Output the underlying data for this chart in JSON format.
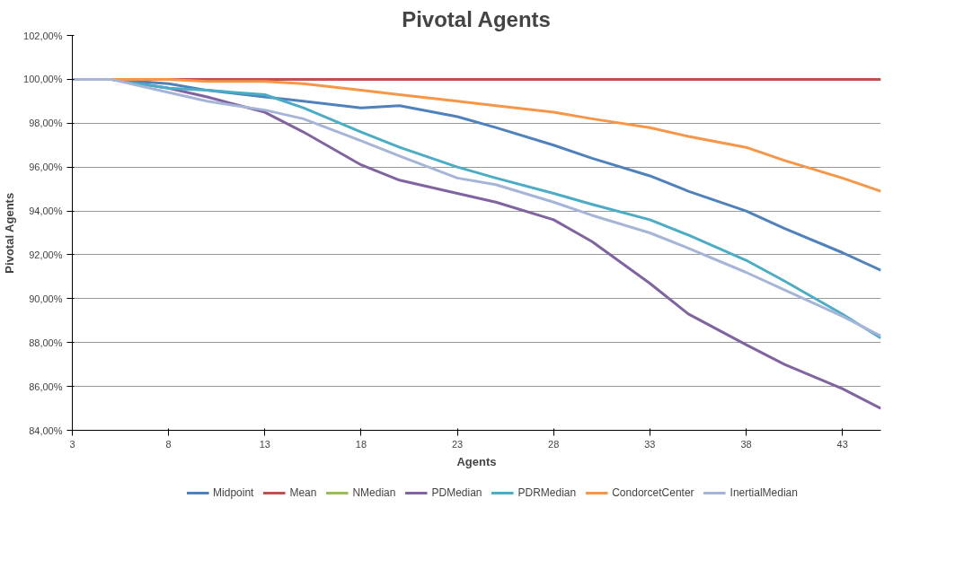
{
  "chart_data": {
    "type": "line",
    "title": "Pivotal Agents",
    "xlabel": "Agents",
    "ylabel": "Pivotal Agents",
    "x": [
      3,
      5,
      8,
      10,
      13,
      15,
      18,
      20,
      23,
      25,
      28,
      30,
      33,
      35,
      38,
      40,
      43,
      45
    ],
    "series": [
      {
        "name": "Midpoint",
        "color": "#4f81bd",
        "values": [
          100,
          100,
          99.8,
          99.5,
          99.2,
          99.0,
          98.7,
          98.8,
          98.3,
          97.8,
          97.0,
          96.4,
          95.6,
          94.9,
          94.0,
          93.2,
          92.1,
          91.3
        ]
      },
      {
        "name": "Mean",
        "color": "#c0504d",
        "values": [
          100,
          100,
          100,
          100,
          100,
          100,
          100,
          100,
          100,
          100,
          100,
          100,
          100,
          100,
          100,
          100,
          100,
          100
        ]
      },
      {
        "name": "NMedian",
        "color": "#9bbb59",
        "values": [
          null,
          null,
          null,
          null,
          null,
          null,
          null,
          null,
          null,
          null,
          null,
          null,
          null,
          null,
          null,
          null,
          null,
          null
        ]
      },
      {
        "name": "PDMedian",
        "color": "#8064a2",
        "values": [
          100,
          100,
          99.6,
          99.2,
          98.5,
          97.6,
          96.1,
          95.4,
          94.8,
          94.4,
          93.6,
          92.6,
          90.7,
          89.3,
          87.9,
          87.0,
          85.9,
          85.0
        ]
      },
      {
        "name": "PDRMedian",
        "color": "#4bacc6",
        "values": [
          100,
          100,
          99.6,
          99.5,
          99.3,
          98.7,
          97.6,
          96.9,
          96.0,
          95.5,
          94.8,
          94.3,
          93.6,
          92.9,
          91.75,
          90.8,
          89.3,
          88.2
        ]
      },
      {
        "name": "CondorcetCenter",
        "color": "#f79646",
        "values": [
          100,
          100,
          100,
          99.9,
          99.9,
          99.8,
          99.5,
          99.3,
          99.0,
          98.8,
          98.5,
          98.2,
          97.8,
          97.4,
          96.9,
          96.3,
          95.5,
          94.9
        ]
      },
      {
        "name": "InertialMedian",
        "color": "#a5b5d8",
        "values": [
          100,
          100,
          99.4,
          99.0,
          98.6,
          98.2,
          97.2,
          96.5,
          95.5,
          95.2,
          94.4,
          93.8,
          93.0,
          92.3,
          91.2,
          90.4,
          89.2,
          88.3
        ]
      }
    ],
    "xlim": [
      3,
      45
    ],
    "xticks": [
      3,
      8,
      13,
      18,
      23,
      28,
      33,
      38,
      43
    ],
    "ylim": [
      84,
      102
    ],
    "yticks": [
      {
        "value": 84,
        "label": "84,00%"
      },
      {
        "value": 86,
        "label": "86,00%"
      },
      {
        "value": 88,
        "label": "88,00%"
      },
      {
        "value": 90,
        "label": "90,00%"
      },
      {
        "value": 92,
        "label": "92,00%"
      },
      {
        "value": 94,
        "label": "94,00%"
      },
      {
        "value": 96,
        "label": "96,00%"
      },
      {
        "value": 98,
        "label": "98,00%"
      },
      {
        "value": 100,
        "label": "100,00%"
      },
      {
        "value": 102,
        "label": "102,00%"
      }
    ],
    "grid": "y",
    "legend": "bottom",
    "marker": "none",
    "line_style": "solid"
  }
}
